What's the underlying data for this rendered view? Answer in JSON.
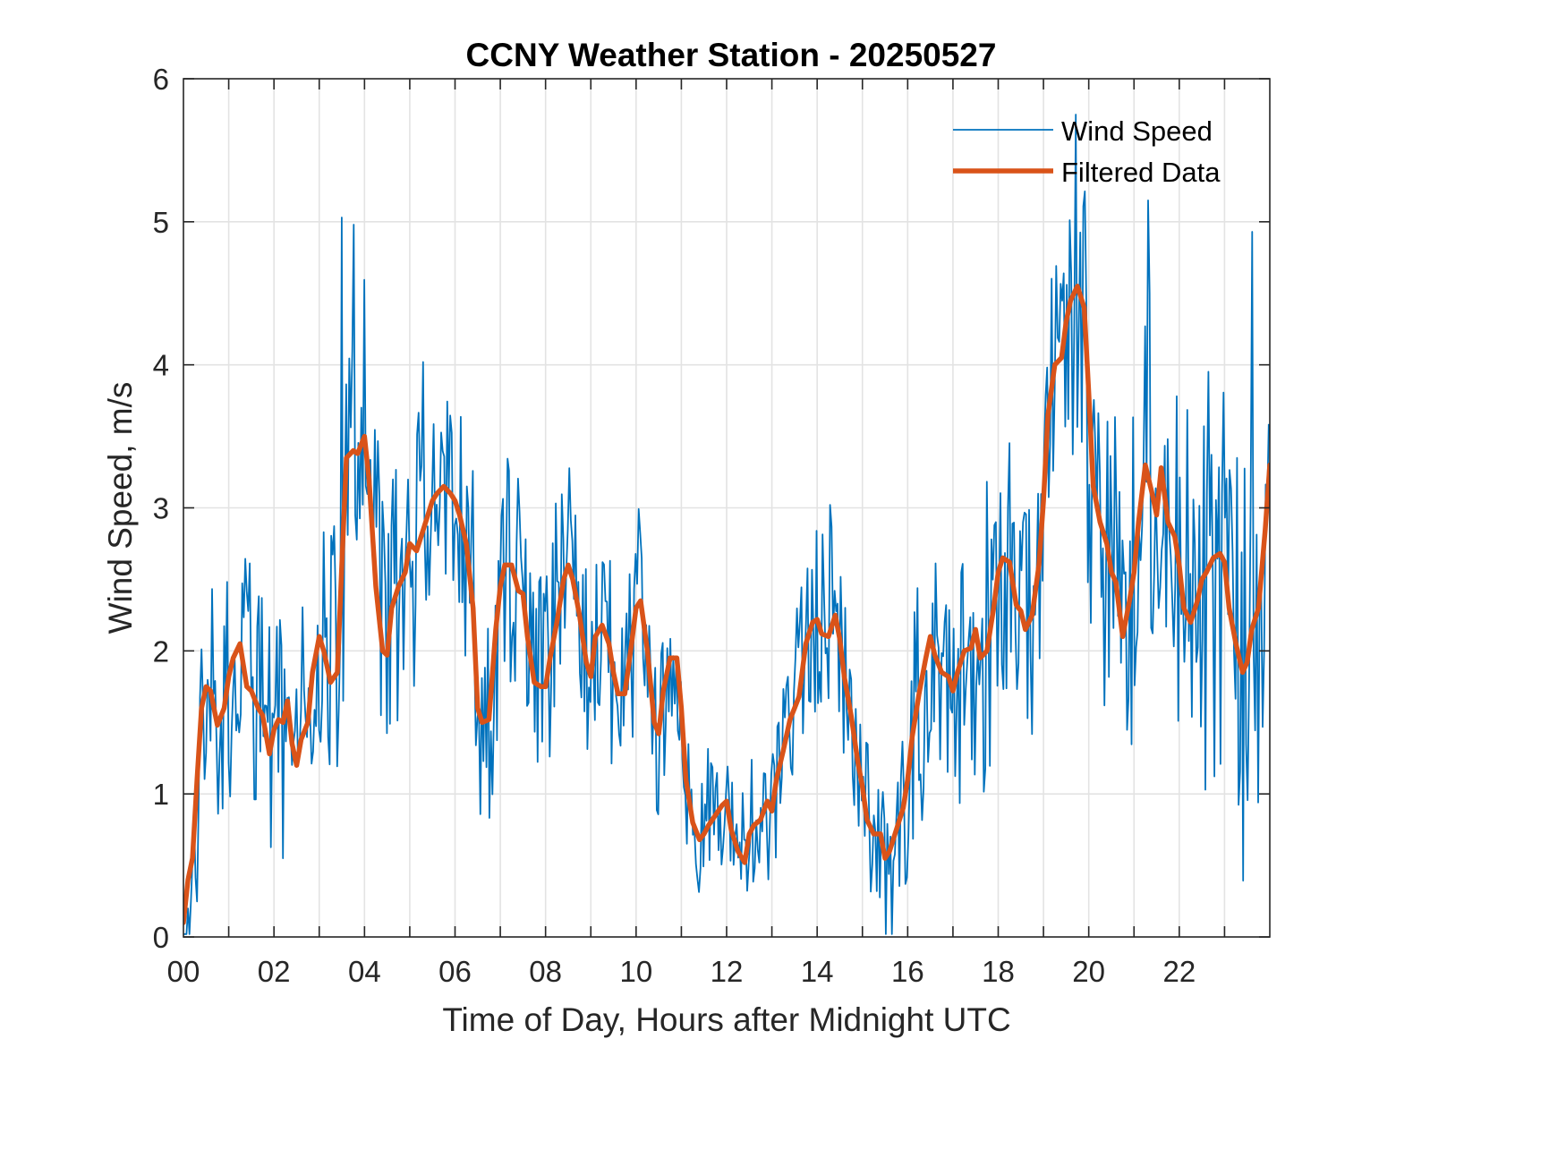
{
  "chart_data": {
    "type": "line",
    "title": "CCNY Weather Station - 20250527",
    "xlabel": "Time of Day, Hours after Midnight UTC",
    "ylabel": "Wind Speed, m/s",
    "xlim": [
      0,
      24
    ],
    "ylim": [
      0,
      6
    ],
    "x_ticks": [
      0,
      2,
      4,
      6,
      8,
      10,
      12,
      14,
      16,
      18,
      20,
      22
    ],
    "x_tick_labels": [
      "00",
      "02",
      "04",
      "06",
      "08",
      "10",
      "12",
      "14",
      "16",
      "18",
      "20",
      "22"
    ],
    "y_ticks": [
      0,
      1,
      2,
      3,
      4,
      5,
      6
    ],
    "y_tick_labels": [
      "0",
      "1",
      "2",
      "3",
      "4",
      "5",
      "6"
    ],
    "grid": true,
    "legend": {
      "position": "top-right",
      "entries": [
        "Wind Speed",
        "Filtered Data"
      ]
    },
    "series": [
      {
        "name": "Wind Speed",
        "color": "#0072BD",
        "note": "raw 1-minute samples; high-frequency noise around the filtered curve",
        "x_step_hours": 0.0333,
        "amplitude_envelope": [
          [
            0,
            0.9
          ],
          [
            3,
            1.0
          ],
          [
            3.5,
            1.4
          ],
          [
            4,
            1.1
          ],
          [
            6,
            0.9
          ],
          [
            11,
            0.6
          ],
          [
            12.5,
            0.5
          ],
          [
            14,
            0.8
          ],
          [
            15,
            0.6
          ],
          [
            16,
            0.9
          ],
          [
            19,
            1.1
          ],
          [
            20,
            1.3
          ],
          [
            22,
            1.3
          ],
          [
            24,
            1.5
          ]
        ],
        "peak_values": [
          {
            "x": 3.5,
            "y": 5.03
          },
          {
            "x": 3.75,
            "y": 4.98
          },
          {
            "x": 5.3,
            "y": 4.02
          },
          {
            "x": 19.7,
            "y": 5.75
          },
          {
            "x": 21.3,
            "y": 5.15
          },
          {
            "x": 23.6,
            "y": 4.93
          }
        ]
      },
      {
        "name": "Filtered Data",
        "color": "#D95319",
        "x": [
          0.0,
          0.1,
          0.2,
          0.3,
          0.4,
          0.5,
          0.6,
          0.75,
          0.9,
          1.0,
          1.1,
          1.25,
          1.4,
          1.5,
          1.65,
          1.75,
          1.9,
          2.0,
          2.1,
          2.2,
          2.3,
          2.4,
          2.5,
          2.6,
          2.75,
          2.85,
          3.0,
          3.1,
          3.25,
          3.4,
          3.5,
          3.6,
          3.75,
          3.85,
          4.0,
          4.1,
          4.25,
          4.4,
          4.5,
          4.6,
          4.75,
          4.9,
          5.0,
          5.15,
          5.25,
          5.4,
          5.5,
          5.6,
          5.75,
          5.9,
          6.0,
          6.1,
          6.25,
          6.4,
          6.5,
          6.6,
          6.75,
          6.9,
          7.0,
          7.1,
          7.25,
          7.4,
          7.5,
          7.6,
          7.75,
          7.9,
          8.0,
          8.1,
          8.25,
          8.4,
          8.5,
          8.6,
          8.75,
          8.9,
          9.0,
          9.1,
          9.25,
          9.4,
          9.5,
          9.6,
          9.75,
          9.9,
          10.0,
          10.1,
          10.25,
          10.4,
          10.5,
          10.6,
          10.75,
          10.9,
          11.0,
          11.1,
          11.25,
          11.4,
          11.5,
          11.6,
          11.75,
          11.9,
          12.0,
          12.1,
          12.25,
          12.4,
          12.5,
          12.6,
          12.75,
          12.9,
          13.0,
          13.1,
          13.25,
          13.4,
          13.5,
          13.6,
          13.75,
          13.9,
          14.0,
          14.1,
          14.25,
          14.4,
          14.5,
          14.6,
          14.75,
          14.9,
          15.0,
          15.1,
          15.25,
          15.4,
          15.5,
          15.6,
          15.75,
          15.9,
          16.0,
          16.1,
          16.25,
          16.4,
          16.5,
          16.6,
          16.75,
          16.9,
          17.0,
          17.1,
          17.25,
          17.4,
          17.5,
          17.6,
          17.75,
          17.9,
          18.0,
          18.1,
          18.25,
          18.4,
          18.5,
          18.6,
          18.75,
          18.9,
          19.0,
          19.1,
          19.25,
          19.4,
          19.5,
          19.6,
          19.75,
          19.9,
          20.0,
          20.1,
          20.25,
          20.4,
          20.5,
          20.6,
          20.75,
          20.9,
          21.0,
          21.1,
          21.25,
          21.4,
          21.5,
          21.6,
          21.75,
          21.9,
          22.0,
          22.1,
          22.25,
          22.4,
          22.5,
          22.6,
          22.75,
          22.9,
          23.0,
          23.1,
          23.25,
          23.4,
          23.5,
          23.6,
          23.75,
          23.9,
          24.0
        ],
        "values": [
          0.1,
          0.4,
          0.55,
          1.1,
          1.6,
          1.75,
          1.72,
          1.48,
          1.6,
          1.82,
          1.95,
          2.05,
          1.75,
          1.72,
          1.6,
          1.55,
          1.28,
          1.45,
          1.52,
          1.5,
          1.65,
          1.35,
          1.2,
          1.38,
          1.5,
          1.85,
          2.1,
          2.0,
          1.78,
          1.85,
          2.6,
          3.35,
          3.4,
          3.38,
          3.5,
          3.2,
          2.45,
          2.0,
          1.97,
          2.3,
          2.45,
          2.55,
          2.75,
          2.7,
          2.8,
          2.95,
          3.05,
          3.1,
          3.15,
          3.1,
          3.05,
          2.95,
          2.75,
          2.3,
          1.6,
          1.5,
          1.52,
          2.15,
          2.45,
          2.6,
          2.6,
          2.42,
          2.4,
          2.1,
          1.78,
          1.75,
          1.75,
          1.95,
          2.2,
          2.5,
          2.6,
          2.5,
          2.25,
          1.92,
          1.82,
          2.1,
          2.18,
          2.05,
          1.85,
          1.7,
          1.7,
          2.05,
          2.3,
          2.35,
          2.0,
          1.5,
          1.42,
          1.72,
          1.95,
          1.95,
          1.6,
          1.1,
          0.8,
          0.68,
          0.72,
          0.78,
          0.85,
          0.92,
          0.95,
          0.75,
          0.6,
          0.52,
          0.72,
          0.78,
          0.82,
          0.95,
          0.88,
          1.1,
          1.3,
          1.52,
          1.6,
          1.68,
          2.05,
          2.2,
          2.22,
          2.12,
          2.1,
          2.25,
          2.08,
          1.82,
          1.55,
          1.22,
          1.05,
          0.82,
          0.72,
          0.72,
          0.55,
          0.6,
          0.75,
          0.9,
          1.1,
          1.4,
          1.7,
          1.95,
          2.1,
          1.97,
          1.85,
          1.82,
          1.72,
          1.85,
          2.0,
          2.02,
          2.15,
          1.95,
          2.0,
          2.3,
          2.55,
          2.65,
          2.62,
          2.32,
          2.28,
          2.15,
          2.25,
          2.6,
          3.05,
          3.65,
          4.0,
          4.05,
          4.3,
          4.45,
          4.55,
          4.4,
          3.8,
          3.15,
          2.9,
          2.75,
          2.55,
          2.48,
          2.1,
          2.35,
          2.55,
          2.9,
          3.3,
          3.1,
          2.95,
          3.28,
          2.9,
          2.8,
          2.6,
          2.3,
          2.2,
          2.35,
          2.5,
          2.55,
          2.65,
          2.68,
          2.62,
          2.3,
          2.05,
          1.85,
          1.92,
          2.15,
          2.3,
          2.85,
          3.3
        ]
      }
    ]
  }
}
